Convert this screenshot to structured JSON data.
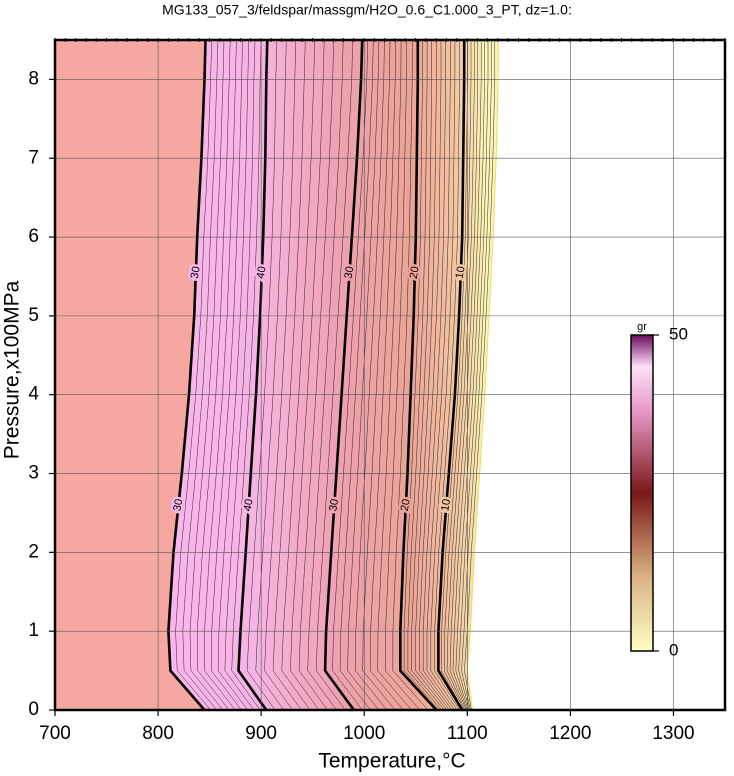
{
  "chart_data": {
    "type": "contour",
    "title": "MG133_057_3/feldspar/massgm/H2O_0.6_C1.000_3_PT, dz=1.0:",
    "xlabel": "Temperature,°C",
    "ylabel": "Pressure,x100MPa",
    "xlim": [
      700,
      1350
    ],
    "ylim": [
      0,
      8.5
    ],
    "xticks": [
      700,
      800,
      900,
      1000,
      1100,
      1200,
      1300
    ],
    "yticks": [
      0,
      1,
      2,
      3,
      4,
      5,
      6,
      7,
      8
    ],
    "grid": true,
    "left_fill": "#f6a7a1",
    "y": [
      0,
      0.5,
      1,
      2,
      3,
      4,
      5,
      6,
      7,
      8,
      8.5
    ],
    "contours": [
      {
        "level": 30,
        "color": "#f8b6ea",
        "x": [
          845,
          812,
          810,
          815,
          823,
          830,
          835,
          838,
          842,
          845,
          846
        ]
      },
      {
        "level": 40,
        "color": "#f7b4e2",
        "x": [
          905,
          878,
          880,
          885,
          890,
          895,
          899,
          902,
          904,
          905,
          906
        ]
      },
      {
        "level": 30,
        "color": "#eda2ae",
        "x": [
          990,
          962,
          963,
          968,
          973,
          978,
          983,
          988,
          993,
          997,
          998
        ]
      },
      {
        "level": 20,
        "color": "#eba497",
        "x": [
          1070,
          1035,
          1035,
          1038,
          1042,
          1045,
          1048,
          1050,
          1051,
          1052,
          1052
        ]
      },
      {
        "level": 10,
        "color": "#f2c6a2",
        "x": [
          1095,
          1072,
          1072,
          1076,
          1082,
          1088,
          1092,
          1095,
          1096,
          1097,
          1097
        ]
      }
    ],
    "field_edge": {
      "color": "#fbf3b8",
      "x": [
        1105,
        1100,
        1103,
        1107,
        1112,
        1117,
        1121,
        1125,
        1128,
        1130,
        1130
      ]
    },
    "colorbar": {
      "label": "gr",
      "lim": [
        0,
        50
      ],
      "ticks": [
        0,
        50
      ],
      "stops": [
        {
          "value": 0,
          "color": "#ffffc8"
        },
        {
          "value": 12,
          "color": "#d8b080"
        },
        {
          "value": 25,
          "color": "#7a1818"
        },
        {
          "value": 38,
          "color": "#e89ac8"
        },
        {
          "value": 45,
          "color": "#fde0f8"
        },
        {
          "value": 50,
          "color": "#6a0a5a"
        }
      ]
    }
  }
}
